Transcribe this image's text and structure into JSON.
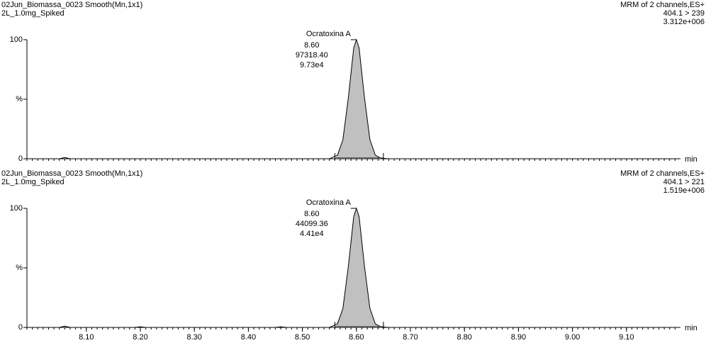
{
  "chart_data": [
    {
      "type": "line",
      "title": "02Jun_Biomassa_0023 Smooth(Mn,1x1)",
      "subtitle": "2L_1.0mg_Spiked",
      "info": [
        "MRM of 2 channels,ES+",
        "404.1 > 239",
        "3.312e+006"
      ],
      "xlabel": "min",
      "x": [
        7.99,
        8.05,
        8.06,
        8.07,
        8.55,
        8.565,
        8.575,
        8.585,
        8.595,
        8.6,
        8.605,
        8.615,
        8.625,
        8.635,
        8.645,
        8.66,
        9.2
      ],
      "values": [
        0,
        0,
        1,
        0,
        0,
        3,
        16,
        51,
        93,
        100,
        93,
        51,
        16,
        3,
        0.5,
        0,
        0
      ],
      "color": "#000000",
      "fill": "#c0c0c0",
      "xlim": [
        7.99,
        9.2
      ],
      "ylim": [
        0,
        100
      ],
      "yticks": [
        0,
        {
          "value": 50,
          "label": "%"
        },
        100
      ],
      "peak": {
        "labels": [
          "Ocratoxina A",
          "8.60",
          "97318.40",
          "9.73e4"
        ],
        "start": 8.56,
        "end": 8.65
      }
    },
    {
      "type": "line",
      "title": "02Jun_Biomassa_0023 Smooth(Mn,1x1)",
      "subtitle": "2L_1.0mg_Spiked",
      "info": [
        "MRM of 2 channels,ES+",
        "404.1 > 221",
        "1.519e+006"
      ],
      "xlabel": "min",
      "x": [
        7.99,
        8.05,
        8.06,
        8.07,
        8.19,
        8.2,
        8.21,
        8.45,
        8.46,
        8.47,
        8.55,
        8.565,
        8.575,
        8.585,
        8.595,
        8.6,
        8.605,
        8.615,
        8.625,
        8.635,
        8.645,
        8.66,
        9.2
      ],
      "values": [
        0,
        0,
        1,
        0,
        0,
        0.5,
        0,
        0,
        0.5,
        0,
        0,
        3,
        16,
        51,
        93,
        100,
        93,
        51,
        16,
        3,
        0.5,
        0,
        0
      ],
      "color": "#000000",
      "fill": "#c0c0c0",
      "xlim": [
        7.99,
        9.2
      ],
      "ylim": [
        0,
        100
      ],
      "yticks": [
        0,
        {
          "value": 50,
          "label": "%"
        },
        100
      ],
      "xticks": [
        {
          "value": 8.1,
          "label": "8.10"
        },
        {
          "value": 8.2,
          "label": "8.20"
        },
        {
          "value": 8.3,
          "label": "8.30"
        },
        {
          "value": 8.4,
          "label": "8.40"
        },
        {
          "value": 8.5,
          "label": "8.50"
        },
        {
          "value": 8.6,
          "label": "8.60"
        },
        {
          "value": 8.7,
          "label": "8.70"
        },
        {
          "value": 8.8,
          "label": "8.80"
        },
        {
          "value": 8.9,
          "label": "8.90"
        },
        {
          "value": 9.0,
          "label": "9.00"
        },
        {
          "value": 9.1,
          "label": "9.10"
        }
      ],
      "peak": {
        "labels": [
          "Ocratoxina A",
          "8.60",
          "44099.36",
          "4.41e4"
        ],
        "start": 8.56,
        "end": 8.65
      }
    }
  ]
}
